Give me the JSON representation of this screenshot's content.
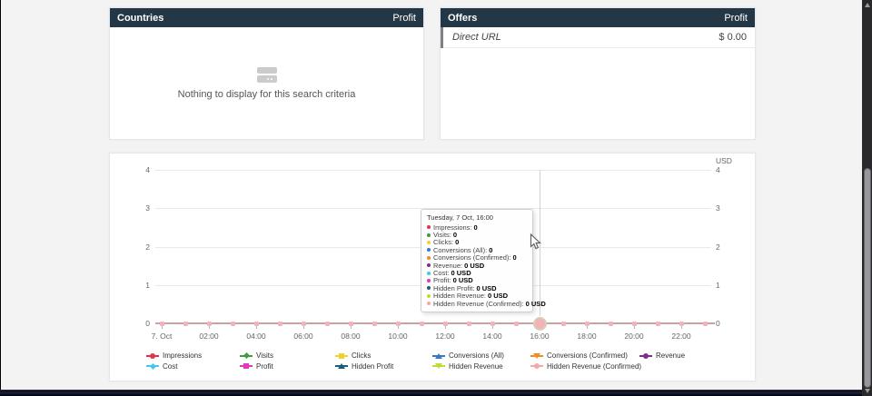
{
  "panels": {
    "countries": {
      "title": "Countries",
      "metric_header": "Profit",
      "empty_text": "Nothing to display for this search criteria"
    },
    "offers": {
      "title": "Offers",
      "metric_header": "Profit",
      "rows": [
        {
          "name": "Direct URL",
          "value": "$ 0.00"
        }
      ]
    }
  },
  "tooltip": {
    "title": "Tuesday, 7 Oct, 16:00"
  },
  "chart_data": {
    "type": "line",
    "unit_label": "USD",
    "ylim": [
      0,
      4
    ],
    "yticks": [
      "4",
      "3",
      "2",
      "1",
      "0"
    ],
    "xticks": [
      "7. Oct",
      "02:00",
      "04:00",
      "06:00",
      "08:00",
      "10:00",
      "12:00",
      "14:00",
      "16:00",
      "18:00",
      "20:00",
      "22:00"
    ],
    "points_per_series": 24,
    "grid": "horizontal",
    "legend_position": "bottom",
    "hover": {
      "index": 16,
      "label": "16:00"
    },
    "axis_line_color": "#c7a4a0",
    "marker_color": "#f3b2b8",
    "hover_ring_color": "#d7ceb8",
    "series": [
      {
        "name": "Impressions",
        "color": "#e0344a",
        "marker": "circle",
        "tooltip_value": "0",
        "values": [
          0,
          0,
          0,
          0,
          0,
          0,
          0,
          0,
          0,
          0,
          0,
          0,
          0,
          0,
          0,
          0,
          0,
          0,
          0,
          0,
          0,
          0,
          0,
          0
        ]
      },
      {
        "name": "Visits",
        "color": "#3d9c41",
        "marker": "diamond",
        "tooltip_value": "0",
        "values": [
          0,
          0,
          0,
          0,
          0,
          0,
          0,
          0,
          0,
          0,
          0,
          0,
          0,
          0,
          0,
          0,
          0,
          0,
          0,
          0,
          0,
          0,
          0,
          0
        ]
      },
      {
        "name": "Clicks",
        "color": "#f2d22c",
        "marker": "square",
        "tooltip_value": "0",
        "values": [
          0,
          0,
          0,
          0,
          0,
          0,
          0,
          0,
          0,
          0,
          0,
          0,
          0,
          0,
          0,
          0,
          0,
          0,
          0,
          0,
          0,
          0,
          0,
          0
        ]
      },
      {
        "name": "Conversions (All)",
        "color": "#3779c4",
        "marker": "triangle-up",
        "tooltip_value": "0",
        "values": [
          0,
          0,
          0,
          0,
          0,
          0,
          0,
          0,
          0,
          0,
          0,
          0,
          0,
          0,
          0,
          0,
          0,
          0,
          0,
          0,
          0,
          0,
          0,
          0
        ]
      },
      {
        "name": "Conversions (Confirmed)",
        "color": "#ef8c23",
        "marker": "triangle-down",
        "tooltip_value": "0",
        "values": [
          0,
          0,
          0,
          0,
          0,
          0,
          0,
          0,
          0,
          0,
          0,
          0,
          0,
          0,
          0,
          0,
          0,
          0,
          0,
          0,
          0,
          0,
          0,
          0
        ]
      },
      {
        "name": "Revenue",
        "color": "#7c2d8e",
        "marker": "circle",
        "tooltip_value": "0 USD",
        "values": [
          0,
          0,
          0,
          0,
          0,
          0,
          0,
          0,
          0,
          0,
          0,
          0,
          0,
          0,
          0,
          0,
          0,
          0,
          0,
          0,
          0,
          0,
          0,
          0
        ]
      },
      {
        "name": "Cost",
        "color": "#41c9ec",
        "marker": "diamond",
        "tooltip_value": "0 USD",
        "values": [
          0,
          0,
          0,
          0,
          0,
          0,
          0,
          0,
          0,
          0,
          0,
          0,
          0,
          0,
          0,
          0,
          0,
          0,
          0,
          0,
          0,
          0,
          0,
          0
        ]
      },
      {
        "name": "Profit",
        "color": "#e038bf",
        "marker": "square",
        "tooltip_value": "0 USD",
        "values": [
          0,
          0,
          0,
          0,
          0,
          0,
          0,
          0,
          0,
          0,
          0,
          0,
          0,
          0,
          0,
          0,
          0,
          0,
          0,
          0,
          0,
          0,
          0,
          0
        ]
      },
      {
        "name": "Hidden Profit",
        "color": "#175e78",
        "marker": "triangle-up",
        "tooltip_value": "0 USD",
        "values": [
          0,
          0,
          0,
          0,
          0,
          0,
          0,
          0,
          0,
          0,
          0,
          0,
          0,
          0,
          0,
          0,
          0,
          0,
          0,
          0,
          0,
          0,
          0,
          0
        ]
      },
      {
        "name": "Hidden Revenue",
        "color": "#c4da33",
        "marker": "triangle-down",
        "tooltip_value": "0 USD",
        "values": [
          0,
          0,
          0,
          0,
          0,
          0,
          0,
          0,
          0,
          0,
          0,
          0,
          0,
          0,
          0,
          0,
          0,
          0,
          0,
          0,
          0,
          0,
          0,
          0
        ]
      },
      {
        "name": "Hidden Revenue (Confirmed)",
        "color": "#f5a7ac",
        "marker": "circle",
        "tooltip_value": "0 USD",
        "values": [
          0,
          0,
          0,
          0,
          0,
          0,
          0,
          0,
          0,
          0,
          0,
          0,
          0,
          0,
          0,
          0,
          0,
          0,
          0,
          0,
          0,
          0,
          0,
          0
        ]
      }
    ]
  }
}
